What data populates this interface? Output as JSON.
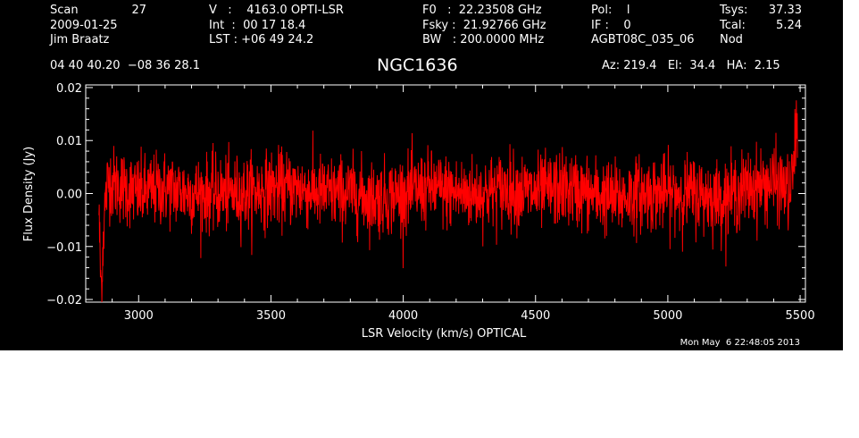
{
  "header": {
    "scan_label": "Scan",
    "scan_value": "27",
    "date": "2009-01-25",
    "observer": "Jim Braatz",
    "v_line": "V   :    4163.0 OPTI-LSR",
    "int_line": "Int  :  00 17 18.4",
    "lst_line": "LST : +06 49 24.2",
    "f0_line": "F0   :  22.23508 GHz",
    "fsky_line": "Fsky :  21.92766 GHz",
    "bw_line": "BW   : 200.0000 MHz",
    "pol_line": "Pol:    l",
    "if_line": "IF :    0",
    "project": "AGBT08C_035_06",
    "tsys_label": "Tsys:",
    "tsys_value": "37.33",
    "tcal_label": "Tcal:",
    "tcal_value": "5.24",
    "mode": "Nod",
    "coords": "04 40 40.20  −08 36 28.1",
    "source": "NGC1636",
    "az_el_ha": "Az: 219.4   El:  34.4   HA:  2.15"
  },
  "timestamp": "Mon May  6 22:48:05 2013",
  "colors": {
    "background": "#000000",
    "axes": "#ffffff",
    "spectrum": "#ff0000"
  },
  "chart_data": {
    "type": "line",
    "xlabel": "LSR Velocity (km/s) OPTICAL",
    "ylabel": "Flux Density (Jy)",
    "xlim": [
      2800,
      5520
    ],
    "ylim": [
      -0.0205,
      0.0205
    ],
    "x_ticks": [
      3000,
      3500,
      4000,
      4500,
      5000,
      5500
    ],
    "x_tick_labels": [
      "3000",
      "3500",
      "4000",
      "4500",
      "5000",
      "5500"
    ],
    "y_ticks": [
      -0.02,
      -0.01,
      0.0,
      0.01,
      0.02
    ],
    "y_tick_labels": [
      "−0.02",
      "−0.01",
      "0.00",
      "0.01",
      "0.02"
    ],
    "grid": false,
    "series": [
      {
        "color": "#ff0000",
        "x": [
          2850,
          2855,
          2860,
          2865,
          2870,
          2880,
          2890,
          2900,
          2950,
          3000,
          3100,
          3200,
          3300,
          3400,
          3500,
          3600,
          3700,
          3800,
          3900,
          4000,
          4100,
          4200,
          4300,
          4400,
          4500,
          4600,
          4700,
          4800,
          4900,
          5000,
          5100,
          5200,
          5300,
          5400,
          5450,
          5460,
          5470,
          5480,
          5485,
          5490
        ],
        "y": [
          -0.003,
          -0.014,
          -0.018,
          -0.01,
          -0.004,
          0.001,
          0.003,
          0.002,
          0.001,
          0.0,
          0.001,
          0.0,
          0.0,
          0.0,
          0.001,
          0.001,
          0.0,
          0.0,
          -0.001,
          0.0,
          0.001,
          0.0,
          0.0,
          0.001,
          0.0,
          0.001,
          0.0,
          -0.001,
          0.0,
          0.0,
          0.0,
          -0.001,
          0.001,
          0.002,
          0.001,
          -0.001,
          0.003,
          0.008,
          0.013,
          0.012
        ],
        "noise_rms_jy": 0.0035
      }
    ]
  }
}
